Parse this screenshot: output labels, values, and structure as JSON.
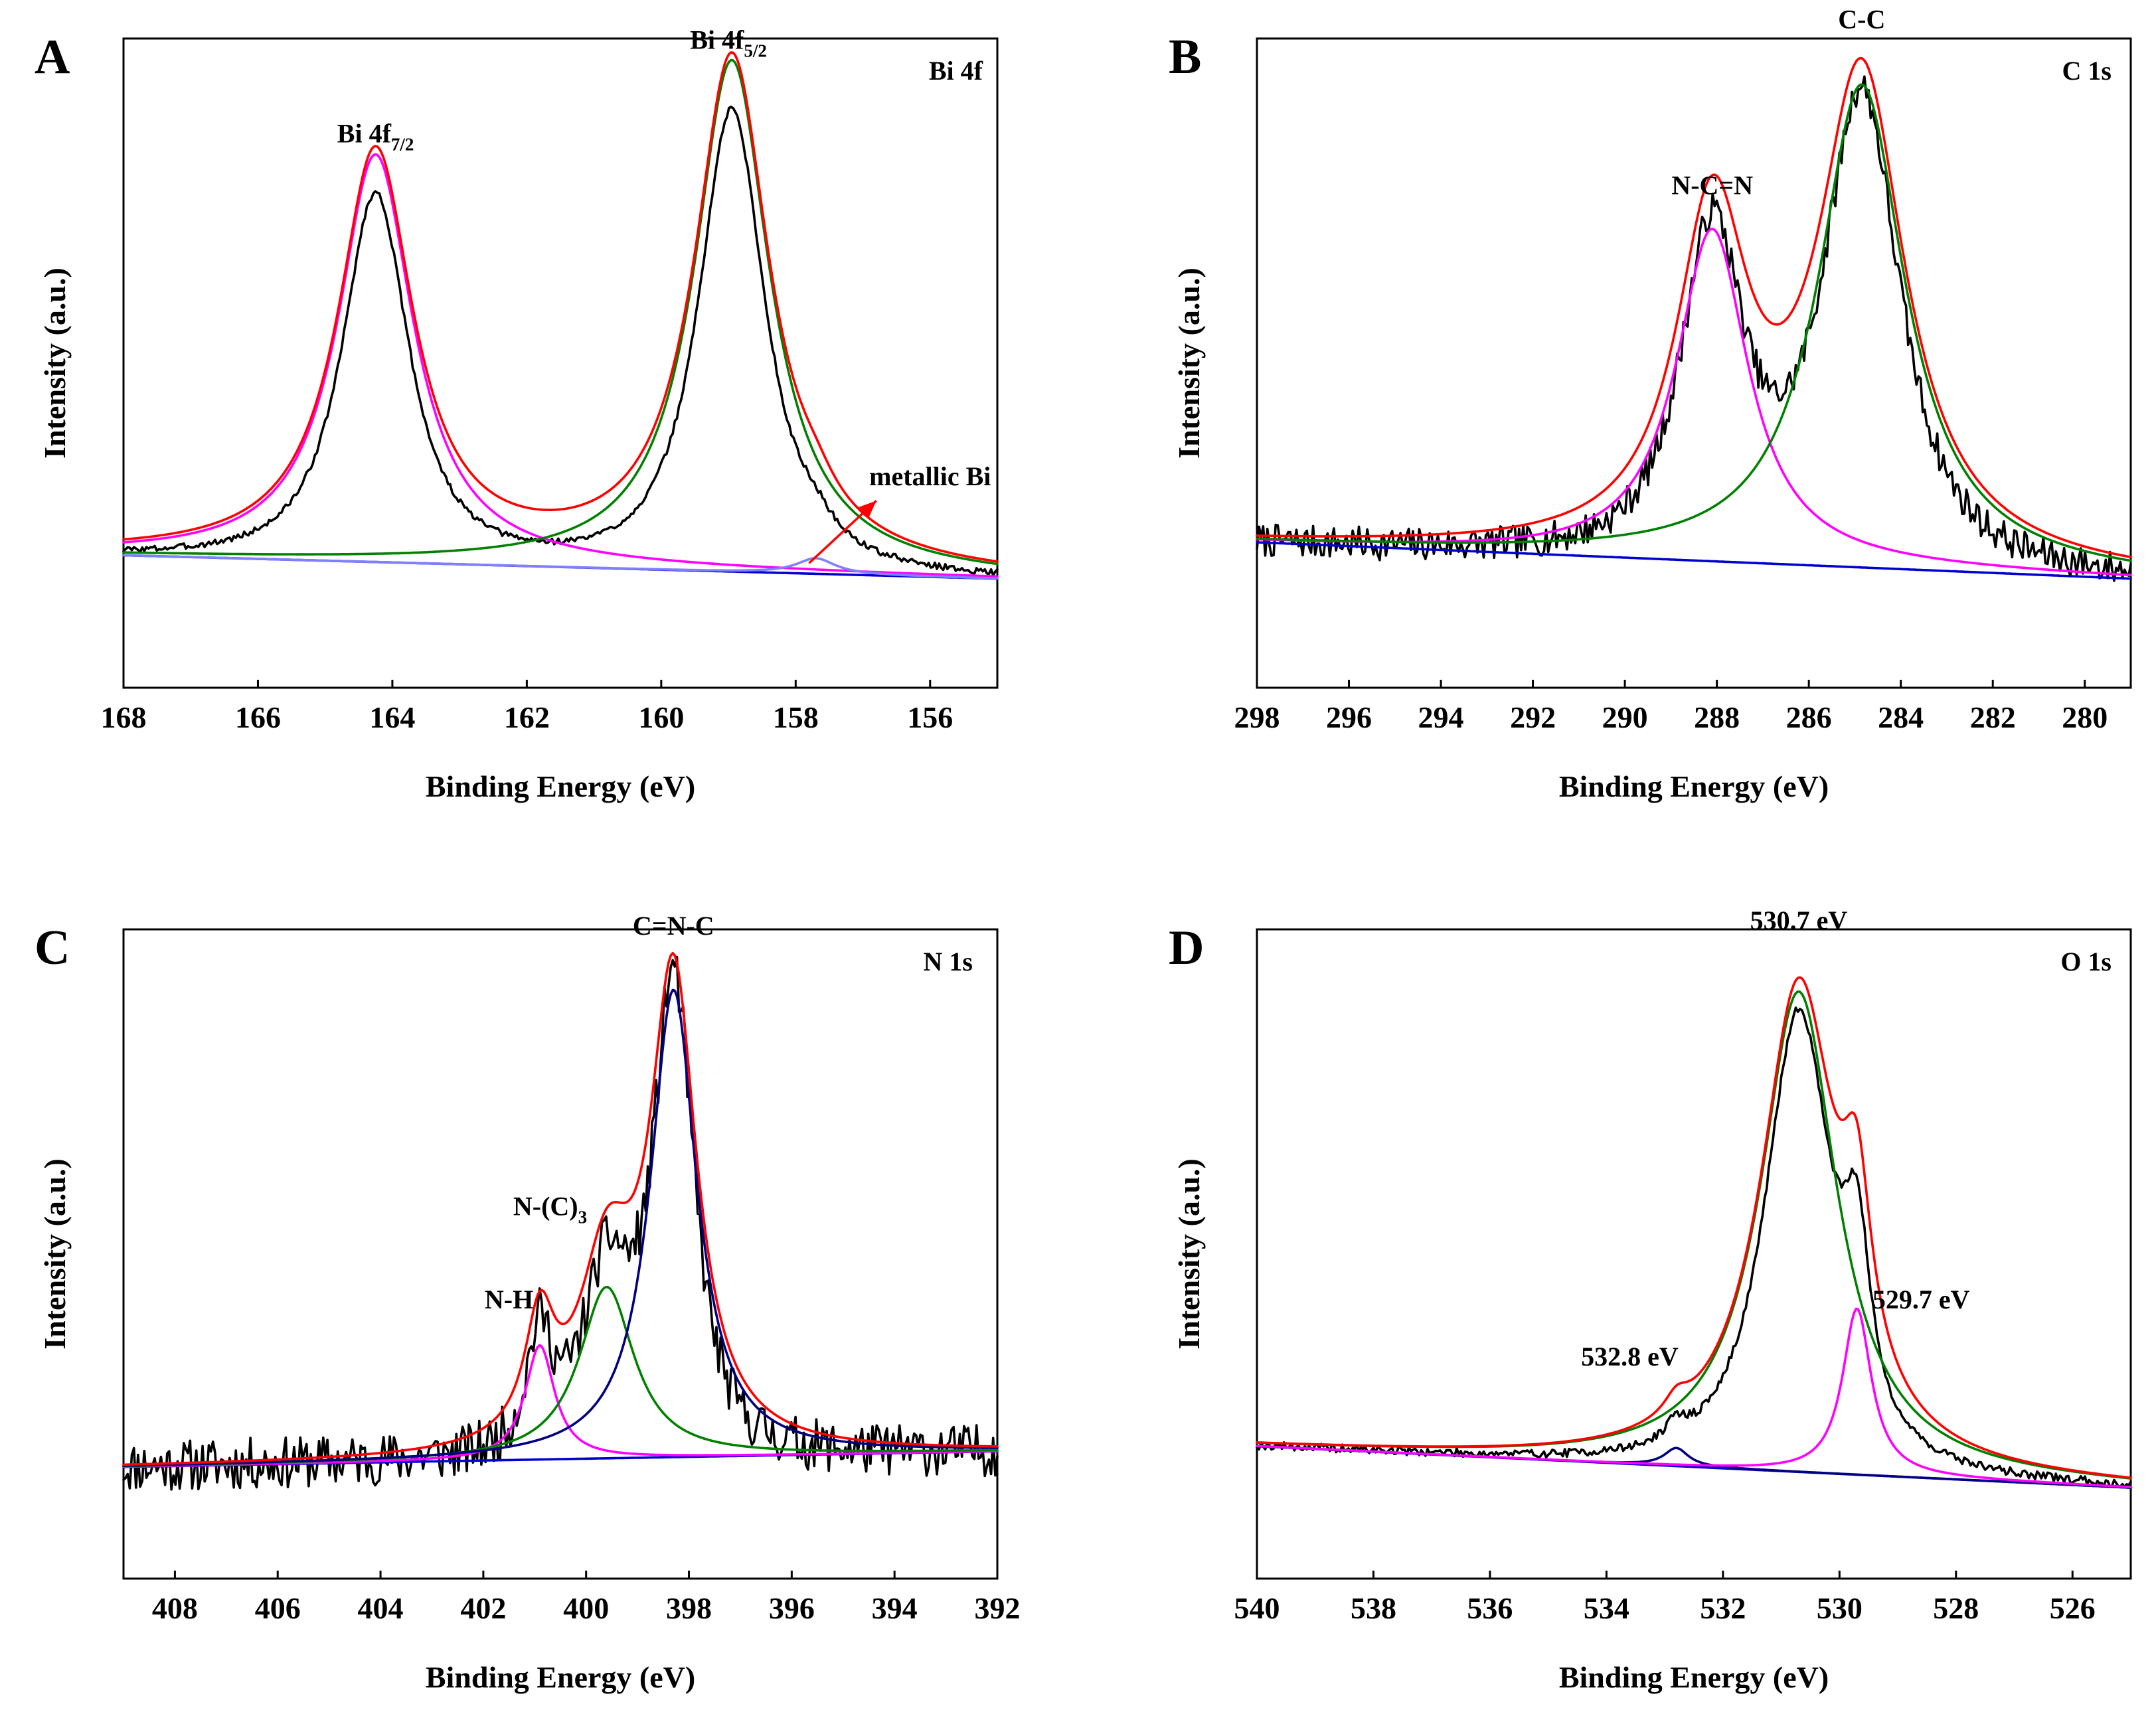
{
  "chart_data": [
    {
      "type": "line",
      "panel": "A",
      "spectrum": "Bi 4f",
      "xlabel": "Binding Energy (eV)",
      "ylabel": "Intensity (a.u.)",
      "xlim": [
        168,
        155
      ],
      "ylim": [
        0,
        1
      ],
      "xticks": [
        168,
        166,
        164,
        162,
        160,
        158,
        156
      ],
      "background": [
        0.155,
        0.11
      ],
      "peaks": [
        {
          "center": 164.25,
          "height": 0.785,
          "width": 0.68,
          "color": "#ff00ff"
        },
        {
          "center": 158.95,
          "height": 0.985,
          "width": 0.68,
          "color": "#008000"
        },
        {
          "center": 157.7,
          "height": 0.03,
          "width": 0.35,
          "color": "#8080ff"
        }
      ],
      "envelope_color": "#ff0000",
      "raw": {
        "noise": 0.006,
        "sharpen": 0.9,
        "seed": 3
      },
      "annotations": [
        {
          "label": "Bi 4f",
          "sub": "7/2",
          "x": 164.25,
          "y": 0.95
        },
        {
          "label": "Bi 4f",
          "sub": "5/2",
          "x": 159.0,
          "y": 1.13
        },
        {
          "label": "metallic Bi",
          "x": 156.0,
          "y": 0.29
        }
      ],
      "arrow": {
        "from": [
          157.8,
          0.14
        ],
        "to": [
          156.8,
          0.26
        ],
        "color": "#ff0000"
      },
      "series": [
        {
          "name": "Raw data",
          "color": "#000000"
        },
        {
          "name": "Envelope",
          "color": "#ff0000"
        },
        {
          "name": "Bi 4f7/2",
          "color": "#ff00ff"
        },
        {
          "name": "Bi 4f5/2",
          "color": "#008000"
        },
        {
          "name": "metallic Bi",
          "color": "#0000ff"
        },
        {
          "name": "Background",
          "color": "#0000cc"
        }
      ]
    },
    {
      "type": "line",
      "panel": "B",
      "spectrum": "C 1s",
      "xlabel": "Binding Energy (eV)",
      "ylabel": "Intensity (a.u.)",
      "xlim": [
        298,
        279
      ],
      "ylim": [
        0,
        1
      ],
      "xticks": [
        298,
        296,
        294,
        292,
        290,
        288,
        286,
        284,
        282,
        280
      ],
      "background": [
        0.18,
        0.11
      ],
      "peaks": [
        {
          "center": 288.1,
          "height": 0.64,
          "width": 0.95,
          "color": "#ff00ff"
        },
        {
          "center": 284.85,
          "height": 0.93,
          "width": 1.15,
          "color": "#008000"
        }
      ],
      "envelope_color": "#ff0000",
      "raw": {
        "noise": 0.032,
        "sharpen": 0.97,
        "seed": 7
      },
      "annotations": [
        {
          "label": "N-C=N",
          "x": 288.1,
          "y": 0.85
        },
        {
          "label": "C-C",
          "x": 284.85,
          "y": 1.17
        }
      ],
      "series": [
        {
          "name": "Raw data",
          "color": "#000000"
        },
        {
          "name": "Envelope",
          "color": "#ff0000"
        },
        {
          "name": "N-C=N",
          "color": "#ff00ff"
        },
        {
          "name": "C-C",
          "color": "#008000"
        },
        {
          "name": "Background",
          "color": "#0000cc"
        }
      ]
    },
    {
      "type": "line",
      "panel": "C",
      "spectrum": "N 1s",
      "xlabel": "Binding Energy (eV)",
      "ylabel": "Intensity (a.u.)",
      "xlim": [
        409,
        392
      ],
      "ylim": [
        0,
        1
      ],
      "xticks": [
        408,
        406,
        404,
        402,
        400,
        398,
        396,
        394,
        392
      ],
      "background": [
        0.115,
        0.145
      ],
      "peaks": [
        {
          "center": 400.9,
          "height": 0.22,
          "width": 0.35,
          "color": "#ff00ff"
        },
        {
          "center": 399.6,
          "height": 0.33,
          "width": 0.65,
          "color": "#008000"
        },
        {
          "center": 398.3,
          "height": 0.9,
          "width": 0.55,
          "color": "#000080"
        }
      ],
      "envelope_color": "#ff0000",
      "raw": {
        "noise": 0.05,
        "sharpen": 1.0,
        "seed": 11
      },
      "annotations": [
        {
          "label": "N-H",
          "x": 401.5,
          "y": 0.42
        },
        {
          "label": "N-(C)",
          "sub": "3",
          "x": 400.7,
          "y": 0.6
        },
        {
          "label": "C=N-C",
          "x": 398.3,
          "y": 1.14
        }
      ],
      "series": [
        {
          "name": "Raw data",
          "color": "#000000"
        },
        {
          "name": "Envelope",
          "color": "#ff0000"
        },
        {
          "name": "N-H",
          "color": "#ff00ff"
        },
        {
          "name": "N-(C)3",
          "color": "#008000"
        },
        {
          "name": "C=N-C",
          "color": "#000080"
        },
        {
          "name": "Background",
          "color": "#0000cc"
        }
      ]
    },
    {
      "type": "line",
      "panel": "D",
      "spectrum": "O 1s",
      "xlabel": "Binding Energy (eV)",
      "ylabel": "Intensity (a.u.)",
      "xlim": [
        540,
        525
      ],
      "ylim": [
        0,
        1
      ],
      "xticks": [
        540,
        538,
        536,
        534,
        532,
        530,
        528,
        526
      ],
      "background": [
        0.155,
        0.075
      ],
      "peaks": [
        {
          "center": 532.8,
          "height": 0.035,
          "width": 0.25,
          "color": "#000080"
        },
        {
          "center": 530.7,
          "height": 0.925,
          "width": 0.8,
          "color": "#008000"
        },
        {
          "center": 529.7,
          "height": 0.32,
          "width": 0.3,
          "color": "#ff00ff"
        }
      ],
      "envelope_color": "#ff0000",
      "raw": {
        "noise": 0.008,
        "sharpen": 0.95,
        "seed": 19
      },
      "annotations": [
        {
          "label": "532.8 eV",
          "x": 533.6,
          "y": 0.31
        },
        {
          "label": "530.7 eV",
          "x": 530.7,
          "y": 1.15
        },
        {
          "label": "529.7 eV",
          "x": 528.6,
          "y": 0.42
        }
      ],
      "series": [
        {
          "name": "Raw data",
          "color": "#000000"
        },
        {
          "name": "Envelope",
          "color": "#ff0000"
        },
        {
          "name": "532.8 eV",
          "color": "#000080"
        },
        {
          "name": "530.7 eV",
          "color": "#008000"
        },
        {
          "name": "529.7 eV",
          "color": "#ff00ff"
        },
        {
          "name": "Background",
          "color": "#0000cc"
        }
      ]
    }
  ]
}
